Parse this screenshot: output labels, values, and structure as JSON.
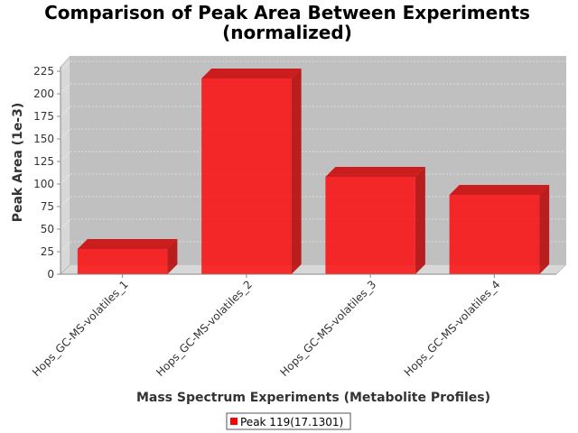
{
  "chart_data": {
    "type": "bar",
    "title_line1": "Comparison of Peak Area Between Experiments",
    "title_line2": "(normalized)",
    "xlabel": "Mass Spectrum Experiments (Metabolite Profiles)",
    "ylabel": "Peak Area (1e-3)",
    "categories": [
      "Hops_GC-MS-volatiles_1",
      "Hops_GC-MS-volatiles_2",
      "Hops_GC-MS-volatiles_3",
      "Hops_GC-MS-volatiles_4"
    ],
    "series": [
      {
        "name": "Peak 119(17.1301)",
        "values": [
          28,
          217,
          108,
          88
        ],
        "color": "#ff0000"
      }
    ],
    "ylim": [
      0,
      230
    ],
    "yticks": [
      0,
      25,
      50,
      75,
      100,
      125,
      150,
      175,
      200,
      225
    ],
    "grid": true,
    "legend_position": "bottom",
    "plot_background": "#c0c0c0"
  }
}
